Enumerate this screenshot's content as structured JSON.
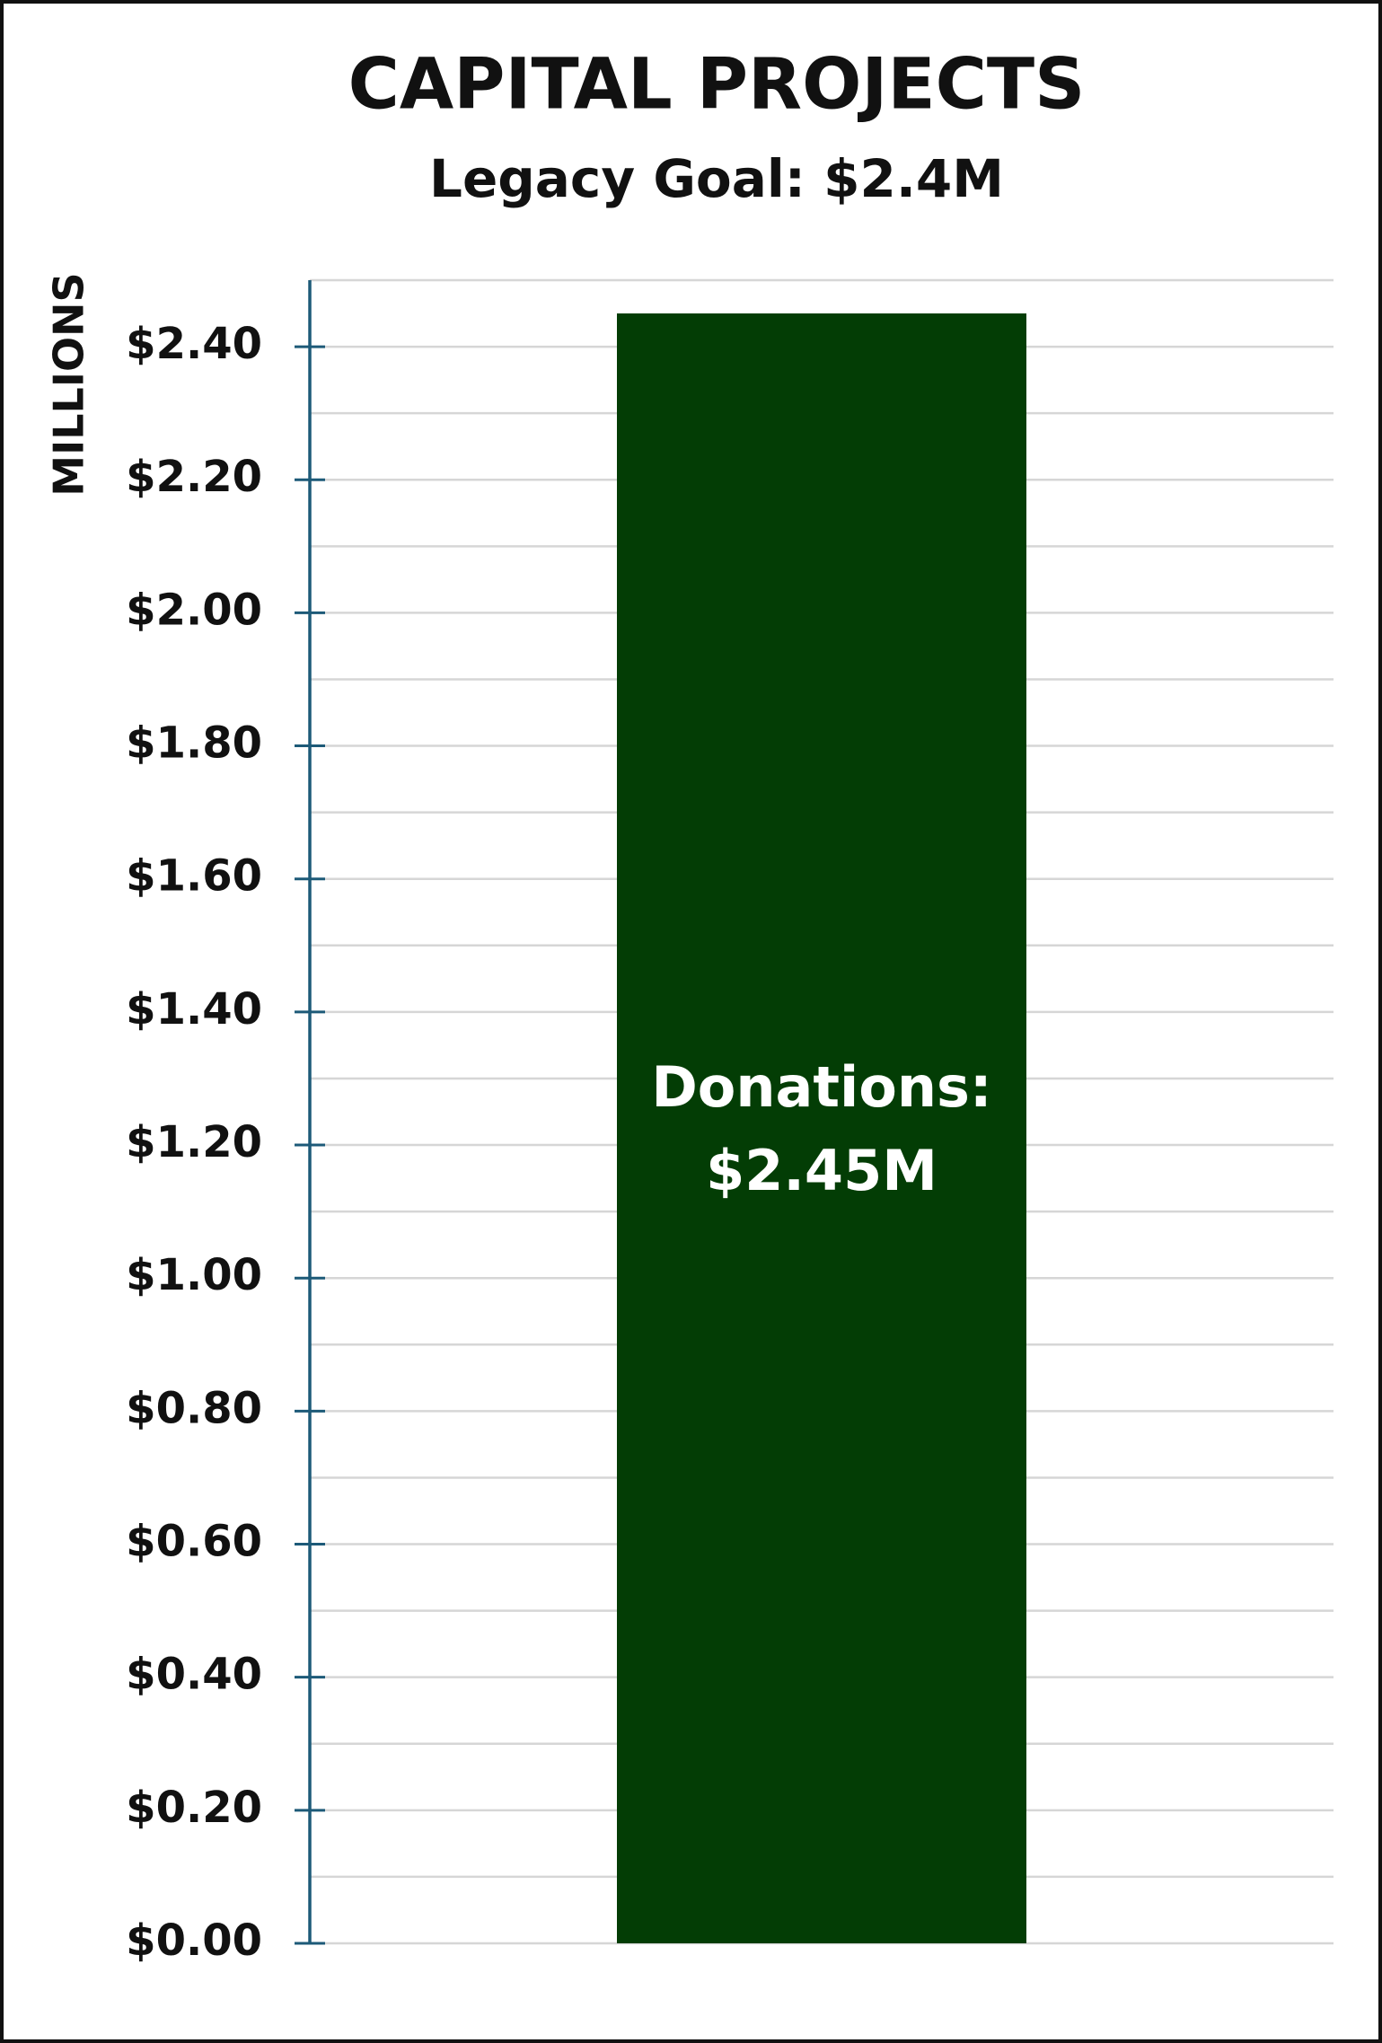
{
  "chart_data": {
    "type": "bar",
    "title": "CAPITAL PROJECTS",
    "subtitle": "Legacy Goal: $2.4M",
    "y_label": "MILLIONS",
    "categories": [
      null
    ],
    "values": [
      2.45
    ],
    "value_labels": [
      "Donations:\n$2.45M"
    ],
    "color": "#033d05",
    "ylim": [
      0,
      2.5
    ],
    "yticks": [
      {
        "value": 0,
        "label": "$0.00"
      },
      {
        "value": 0.2,
        "label": "$0.20"
      },
      {
        "value": 0.4,
        "label": "$0.40"
      },
      {
        "value": 0.6,
        "label": "$0.60"
      },
      {
        "value": 0.8,
        "label": "$0.80"
      },
      {
        "value": 1,
        "label": "$1.00"
      },
      {
        "value": 1.2,
        "label": "$1.20"
      },
      {
        "value": 1.4,
        "label": "$1.40"
      },
      {
        "value": 1.6,
        "label": "$1.60"
      },
      {
        "value": 1.8,
        "label": "$1.80"
      },
      {
        "value": 2,
        "label": "$2.00"
      },
      {
        "value": 2.2,
        "label": "$2.20"
      },
      {
        "value": 2.4,
        "label": "$2.40"
      }
    ],
    "minor_yticks": [
      0.1,
      0.3,
      0.5,
      0.7,
      0.9,
      1.1,
      1.3,
      1.5,
      1.7,
      1.9,
      2.1,
      2.3,
      2.5
    ],
    "grid": true
  }
}
